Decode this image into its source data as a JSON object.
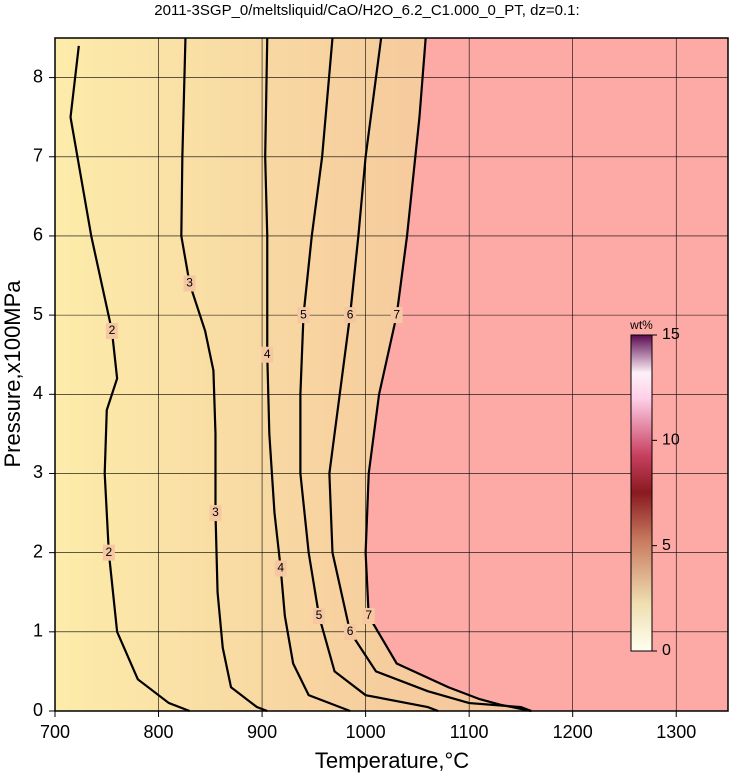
{
  "chart_data": {
    "type": "contour",
    "title": "2011-3SGP_0/meltsliquid/CaO/H2O_6.2_C1.000_0_PT, dz=0.1:",
    "xlabel": "Temperature,°C",
    "ylabel": "Pressure,x100MPa",
    "xlim": [
      700,
      1350
    ],
    "ylim": [
      0,
      8.5
    ],
    "xticks": [
      700,
      800,
      900,
      1000,
      1100,
      1200,
      1300
    ],
    "yticks": [
      0,
      1,
      2,
      3,
      4,
      5,
      6,
      7,
      8
    ],
    "grid": true,
    "contours": [
      {
        "level": 2,
        "x": [
          723,
          715,
          735,
          755,
          760,
          750,
          748,
          752,
          760,
          780,
          810,
          830
        ],
        "y": [
          8.4,
          7.5,
          6,
          4.8,
          4.2,
          3.8,
          3,
          2,
          1,
          0.4,
          0.1,
          0
        ]
      },
      {
        "level": 3,
        "x": [
          826,
          823,
          822,
          830,
          845,
          853,
          855,
          855,
          857,
          862,
          870,
          895,
          905
        ],
        "y": [
          8.5,
          7,
          6,
          5.4,
          4.8,
          4.3,
          3.5,
          2.5,
          1.5,
          0.8,
          0.3,
          0.05,
          0
        ]
      },
      {
        "level": 4,
        "x": [
          905,
          903,
          905,
          905,
          907,
          912,
          918,
          922,
          930,
          945,
          985
        ],
        "y": [
          8.5,
          7,
          6,
          4.5,
          3.5,
          2.5,
          1.8,
          1.2,
          0.6,
          0.2,
          0
        ]
      },
      {
        "level": 5,
        "x": [
          968,
          958,
          948,
          940,
          937,
          937,
          945,
          955,
          970,
          1000,
          1060,
          1070
        ],
        "y": [
          8.5,
          7,
          6,
          5,
          4,
          3,
          2,
          1.2,
          0.5,
          0.2,
          0.05,
          0
        ]
      },
      {
        "level": 6,
        "x": [
          1015,
          1000,
          993,
          985,
          975,
          965,
          968,
          985,
          1010,
          1060,
          1100,
          1150,
          1160
        ],
        "y": [
          8.5,
          7,
          6,
          5,
          4,
          3,
          2,
          1,
          0.5,
          0.25,
          0.1,
          0.05,
          0
        ]
      },
      {
        "level": 7,
        "x": [
          1058,
          1052,
          1040,
          1030,
          1013,
          1003,
          1000,
          1003,
          1030,
          1080,
          1110,
          1130,
          1160
        ],
        "y": [
          8.5,
          7.5,
          6,
          5,
          4,
          3,
          2,
          1.2,
          0.6,
          0.3,
          0.15,
          0.08,
          0
        ]
      }
    ],
    "colorbar": {
      "label": "wt%",
      "lim": [
        0,
        15
      ],
      "ticks": [
        0,
        5,
        10,
        15
      ]
    }
  }
}
